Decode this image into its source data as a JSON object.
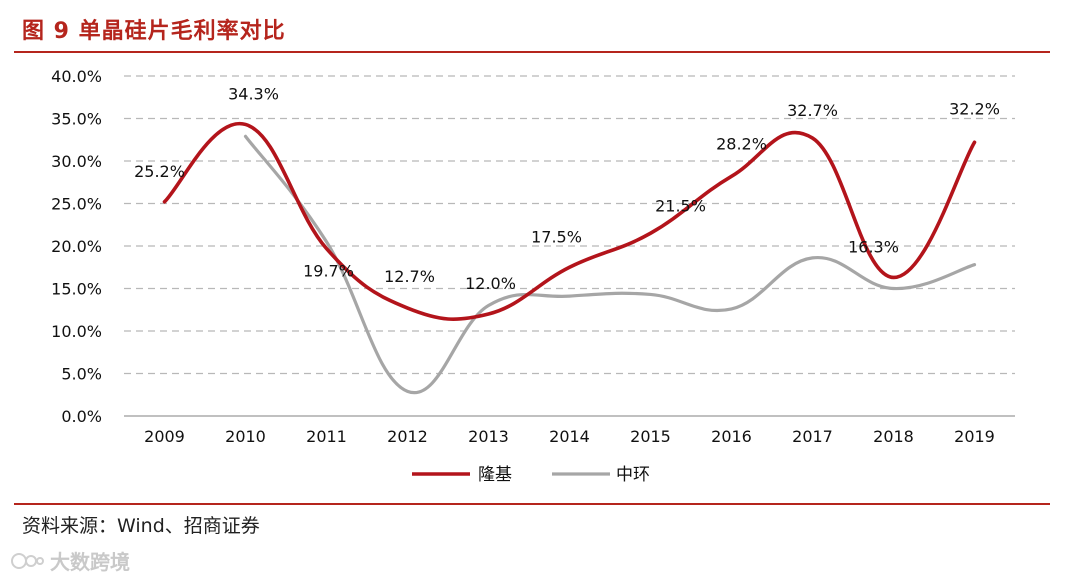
{
  "header": {
    "title": "图 9  单晶硅片毛利率对比"
  },
  "footer": {
    "source": "资料来源：Wind、招商证券"
  },
  "watermark": {
    "text": "大数跨境"
  },
  "colors": {
    "accent": "#b5251d",
    "series_1": "#b3141b",
    "series_2": "#a6a6a6",
    "grid": "#b8b8b8"
  },
  "chart_data": {
    "type": "line",
    "categories": [
      "2009",
      "2010",
      "2011",
      "2012",
      "2013",
      "2014",
      "2015",
      "2016",
      "2017",
      "2018",
      "2019"
    ],
    "ylim": [
      0,
      40
    ],
    "yticks": [
      "0.0%",
      "5.0%",
      "10.0%",
      "15.0%",
      "20.0%",
      "25.0%",
      "30.0%",
      "35.0%",
      "40.0%"
    ],
    "grid": true,
    "legend_position": "bottom",
    "series": [
      {
        "name": "隆基",
        "values": [
          25.2,
          34.3,
          19.7,
          12.7,
          12.0,
          17.5,
          21.5,
          28.2,
          32.7,
          16.3,
          32.2
        ],
        "labels": [
          "25.2%",
          "34.3%",
          "19.7%",
          "12.7%",
          "12.0%",
          "17.5%",
          "21.5%",
          "28.2%",
          "32.7%",
          "16.3%",
          "32.2%"
        ]
      },
      {
        "name": "中环",
        "values": [
          null,
          32.9,
          20.5,
          2.9,
          13.0,
          14.1,
          14.3,
          12.6,
          18.6,
          15.0,
          17.8
        ]
      }
    ]
  }
}
